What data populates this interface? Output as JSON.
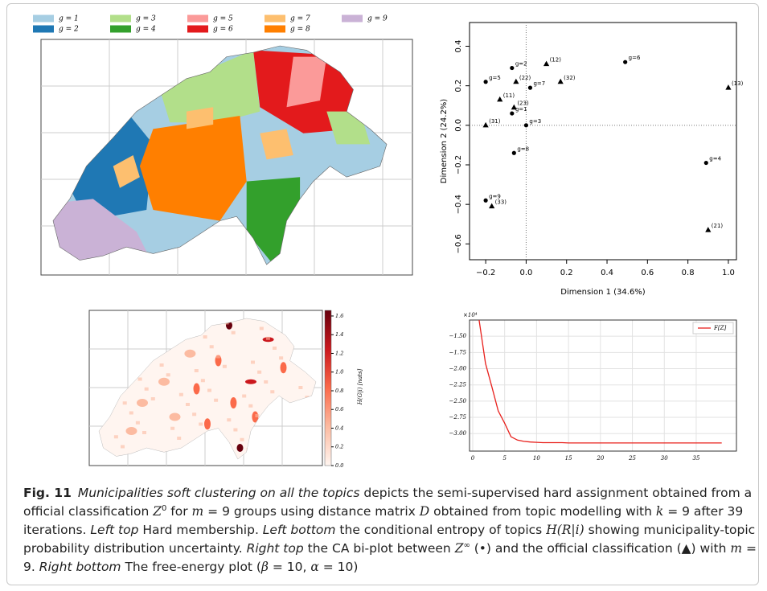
{
  "chart_data": [
    {
      "type": "category-map",
      "legend": [
        {
          "name": "g = 1",
          "color": "#a6cee3"
        },
        {
          "name": "g = 2",
          "color": "#1f78b4"
        },
        {
          "name": "g = 3",
          "color": "#b2df8a"
        },
        {
          "name": "g = 4",
          "color": "#33a02c"
        },
        {
          "name": "g = 5",
          "color": "#fb9a99"
        },
        {
          "name": "g = 6",
          "color": "#e31a1c"
        },
        {
          "name": "g = 7",
          "color": "#fdbf6f"
        },
        {
          "name": "g = 8",
          "color": "#ff7f00"
        },
        {
          "name": "g = 9",
          "color": "#cab2d6"
        }
      ]
    },
    {
      "type": "scatter",
      "xlabel": "Dimension 1 (34.6%)",
      "ylabel": "Dimension 2 (24.2%)",
      "xlim": [
        -0.28,
        1.04
      ],
      "ylim": [
        -0.68,
        0.52
      ],
      "xticks": [
        {
          "value": -0.2,
          "label": "−0.2"
        },
        {
          "value": 0,
          "label": "0.0"
        },
        {
          "value": 0.2,
          "label": "0.2"
        },
        {
          "value": 0.4,
          "label": "0.4"
        },
        {
          "value": 0.6,
          "label": "0.6"
        },
        {
          "value": 0.8,
          "label": "0.8"
        },
        {
          "value": 1,
          "label": "1.0"
        }
      ],
      "yticks": [
        {
          "value": -0.6,
          "label": "−0.6"
        },
        {
          "value": -0.4,
          "label": "−0.4"
        },
        {
          "value": -0.2,
          "label": "−0.2"
        },
        {
          "value": 0,
          "label": "0.0"
        },
        {
          "value": 0.2,
          "label": "0.2"
        },
        {
          "value": 0.4,
          "label": "0.4"
        }
      ],
      "zero_lines": true,
      "series": [
        {
          "marker": "circle",
          "color": "#000000",
          "labels": [
            "g=1",
            "g=2",
            "g=3",
            "g=4",
            "g=5",
            "g=6",
            "g=7",
            "g=8",
            "g=9"
          ],
          "x": [
            -0.07,
            -0.07,
            0.0,
            0.89,
            -0.2,
            0.49,
            0.02,
            -0.06,
            -0.2
          ],
          "values": [
            0.06,
            0.29,
            0.0,
            -0.19,
            0.22,
            0.32,
            0.19,
            -0.14,
            -0.38
          ]
        },
        {
          "marker": "triangle",
          "color": "#000000",
          "labels": [
            "(12)",
            "(22)",
            "(32)",
            "(13)",
            "(11)",
            "(23)",
            "(31)",
            "(33)",
            "(21)"
          ],
          "x": [
            0.1,
            -0.05,
            0.17,
            1.0,
            -0.13,
            -0.06,
            -0.2,
            -0.17,
            0.9
          ],
          "values": [
            0.31,
            0.22,
            0.22,
            0.19,
            0.13,
            0.09,
            0.0,
            -0.41,
            -0.53
          ]
        }
      ]
    },
    {
      "type": "choropleth",
      "colorbar_label": "H(G|i) [nats]",
      "colorbar_lim": [
        0,
        1.66
      ],
      "colorbar_colors": [
        "#fff5f0",
        "#fcbba1",
        "#fb6a4a",
        "#cb181d",
        "#67000d"
      ],
      "colorbar_ticks": [
        {
          "value": 0,
          "label": "0.0"
        },
        {
          "value": 0.2,
          "label": "0.2"
        },
        {
          "value": 0.4,
          "label": "0.4"
        },
        {
          "value": 0.6,
          "label": "0.6"
        },
        {
          "value": 0.8,
          "label": "0.8"
        },
        {
          "value": 1,
          "label": "1.0"
        },
        {
          "value": 1.2,
          "label": "1.2"
        },
        {
          "value": 1.4,
          "label": "1.4"
        },
        {
          "value": 1.6,
          "label": "1.6"
        }
      ]
    },
    {
      "type": "line",
      "y_offset_label": "×10⁴",
      "xlim": [
        -0.5,
        41.3
      ],
      "ylim": [
        -3.27,
        -1.25
      ],
      "xticks": [
        0,
        5,
        10,
        15,
        20,
        25,
        30,
        35
      ],
      "yticks": [
        {
          "value": -1.5,
          "label": "−1.50"
        },
        {
          "value": -1.75,
          "label": "−1.75"
        },
        {
          "value": -2,
          "label": "−2.00"
        },
        {
          "value": -2.25,
          "label": "−2.25"
        },
        {
          "value": -2.5,
          "label": "−2.50"
        },
        {
          "value": -2.75,
          "label": "−2.75"
        },
        {
          "value": -3,
          "label": "−3.00"
        }
      ],
      "grid": true,
      "legend": "upper right",
      "series": [
        {
          "name": "F[Z]",
          "color": "#e8201c",
          "x": [
            1,
            2,
            3,
            4,
            5,
            6,
            7,
            8,
            9,
            10,
            11,
            12,
            13,
            14,
            15,
            16,
            17,
            18,
            19,
            20,
            21,
            22,
            23,
            24,
            25,
            26,
            27,
            28,
            29,
            30,
            31,
            32,
            33,
            34,
            35,
            36,
            37,
            38,
            39
          ],
          "values": [
            -1.25,
            -1.92,
            -2.28,
            -2.65,
            -2.84,
            -3.05,
            -3.1,
            -3.12,
            -3.13,
            -3.135,
            -3.14,
            -3.14,
            -3.14,
            -3.14,
            -3.145,
            -3.145,
            -3.145,
            -3.145,
            -3.145,
            -3.145,
            -3.145,
            -3.145,
            -3.145,
            -3.145,
            -3.145,
            -3.145,
            -3.145,
            -3.145,
            -3.145,
            -3.145,
            -3.145,
            -3.145,
            -3.145,
            -3.145,
            -3.145,
            -3.145,
            -3.145,
            -3.145,
            -3.145
          ]
        }
      ]
    }
  ],
  "caption": [
    {
      "text": "Fig. 11",
      "style": "bold"
    },
    {
      "text": "Municipalities soft clustering on all the topics",
      "style": "italic"
    },
    {
      "text": " depicts the semi-supervised hard assignment obtained from a official classification ",
      "style": "plain"
    },
    {
      "text": "Z",
      "style": "math"
    },
    {
      "text": "0",
      "style": "sup"
    },
    {
      "text": " for ",
      "style": "plain"
    },
    {
      "text": "m",
      "style": "math"
    },
    {
      "text": " = 9 groups using distance matrix ",
      "style": "plain"
    },
    {
      "text": "D",
      "style": "math"
    },
    {
      "text": " obtained from topic modelling with ",
      "style": "plain"
    },
    {
      "text": "k",
      "style": "math"
    },
    {
      "text": " = 9 after 39 iterations. ",
      "style": "plain"
    },
    {
      "text": "Left top",
      "style": "italic"
    },
    {
      "text": " Hard membership. ",
      "style": "plain"
    },
    {
      "text": "Left bottom",
      "style": "italic"
    },
    {
      "text": " the conditional entropy of topics ",
      "style": "plain"
    },
    {
      "text": "H(R|i)",
      "style": "math"
    },
    {
      "text": " showing municipality-topic probability distribution uncertainty. ",
      "style": "plain"
    },
    {
      "text": "Right top",
      "style": "italic"
    },
    {
      "text": " the CA bi-plot between ",
      "style": "plain"
    },
    {
      "text": "Z",
      "style": "math"
    },
    {
      "text": "∞",
      "style": "sup"
    },
    {
      "text": " (•) and the official classification (▲) with ",
      "style": "plain"
    },
    {
      "text": "m",
      "style": "math"
    },
    {
      "text": " = 9. ",
      "style": "plain"
    },
    {
      "text": "Right bottom",
      "style": "italic"
    },
    {
      "text": " The free-energy plot (",
      "style": "plain"
    },
    {
      "text": "β",
      "style": "math"
    },
    {
      "text": " = 10, ",
      "style": "plain"
    },
    {
      "text": "α",
      "style": "math"
    },
    {
      "text": " = 10)",
      "style": "plain"
    }
  ]
}
